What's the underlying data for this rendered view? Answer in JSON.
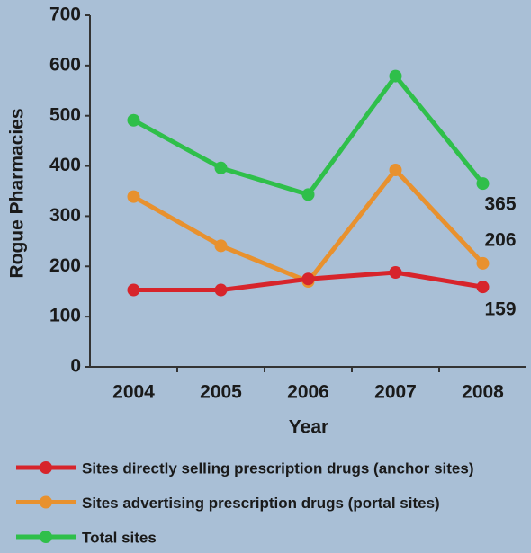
{
  "chart_data": {
    "type": "line",
    "x_label": "Year",
    "y_label": "Rogue Pharmacies",
    "categories": [
      "2004",
      "2005",
      "2006",
      "2007",
      "2008"
    ],
    "series": [
      {
        "name": "Sites directly selling prescription drugs (anchor sites)",
        "color": "#d7242b",
        "values": [
          153,
          153,
          175,
          188,
          159
        ]
      },
      {
        "name": "Sites advertising prescription drugs (portal sites)",
        "color": "#e8912e",
        "values": [
          339,
          241,
          170,
          392,
          206
        ]
      },
      {
        "name": "Total sites",
        "color": "#2fbf4a",
        "values": [
          491,
          396,
          343,
          579,
          365
        ]
      }
    ],
    "ylim": [
      0,
      700
    ],
    "yticks": [
      0,
      100,
      200,
      300,
      400,
      500,
      600,
      700
    ],
    "grid": false,
    "legend": "bottom"
  }
}
